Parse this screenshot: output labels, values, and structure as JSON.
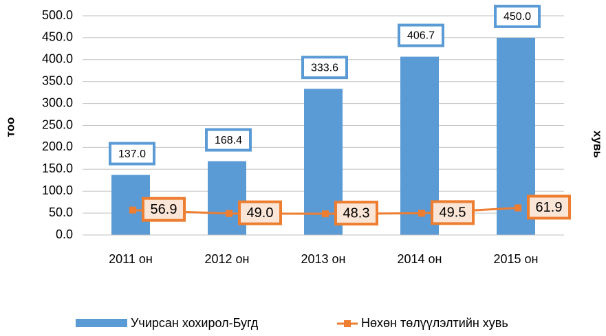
{
  "chart_data": {
    "type": "bar",
    "y_label": "тоо",
    "y2_label": "хувь",
    "categories": [
      "2011 он",
      "2012 он",
      "2013 он",
      "2014 он",
      "2015 он"
    ],
    "series": [
      {
        "name": "Учирсан хохирол-Бугд",
        "type": "bar",
        "color": "#5b9bd5",
        "values": [
          137.0,
          168.4,
          333.6,
          406.7,
          450.0
        ],
        "value_labels": [
          "137.0",
          "168.4",
          "333.6",
          "406.7",
          "450.0"
        ]
      },
      {
        "name": "Нөхөн төлүүлэлтийн хувь",
        "type": "line",
        "color": "#ed7d31",
        "values": [
          56.9,
          49.0,
          48.3,
          49.5,
          61.9
        ],
        "value_labels": [
          "56.9",
          "49.0",
          "48.3",
          "49.5",
          "61.9"
        ]
      }
    ],
    "ylim": [
      0,
      500
    ],
    "yticks": [
      {
        "value": 0,
        "label": "0.0"
      },
      {
        "value": 50,
        "label": "50.0"
      },
      {
        "value": 100,
        "label": "100.0"
      },
      {
        "value": 150,
        "label": "150.0"
      },
      {
        "value": 200,
        "label": "200.0"
      },
      {
        "value": 250,
        "label": "250.0"
      },
      {
        "value": 300,
        "label": "300.0"
      },
      {
        "value": 350,
        "label": "350.0"
      },
      {
        "value": 400,
        "label": "400.0"
      },
      {
        "value": 450,
        "label": "450.0"
      },
      {
        "value": 500,
        "label": "500.0"
      }
    ],
    "grid": true,
    "legend": "bottom"
  }
}
